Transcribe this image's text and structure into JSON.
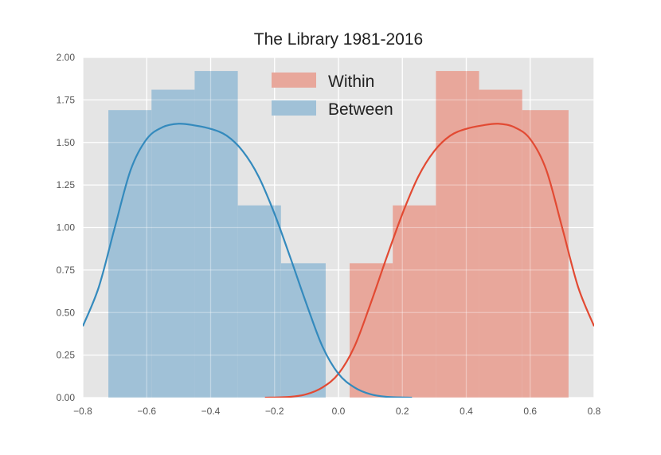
{
  "chart_data": {
    "type": "histogram",
    "title": "The Library 1981-2016",
    "xlabel": "",
    "ylabel": "",
    "xlim": [
      -0.8,
      0.8
    ],
    "ylim": [
      0,
      2.0
    ],
    "x_ticks": [
      -0.8,
      -0.6,
      -0.4,
      -0.2,
      0.0,
      0.2,
      0.4,
      0.6,
      0.8
    ],
    "x_tick_labels": [
      "−0.8",
      "−0.6",
      "−0.4",
      "−0.2",
      "0.0",
      "0.2",
      "0.4",
      "0.6",
      "0.8"
    ],
    "y_ticks": [
      0,
      0.25,
      0.5,
      0.75,
      1.0,
      1.25,
      1.5,
      1.75,
      2.0
    ],
    "y_tick_labels": [
      "0.00",
      "0.25",
      "0.50",
      "0.75",
      "1.00",
      "1.25",
      "1.50",
      "1.75",
      "2.00"
    ],
    "grid": true,
    "background": "#e5e5e5",
    "legend_position": "top-center",
    "series": [
      {
        "name": "Within",
        "color": "#e24a33",
        "fill_color": "#e8a79b",
        "bins": [
          {
            "x0": 0.035,
            "x1": 0.17,
            "y": 0.79
          },
          {
            "x0": 0.17,
            "x1": 0.305,
            "y": 1.13
          },
          {
            "x0": 0.305,
            "x1": 0.44,
            "y": 1.92
          },
          {
            "x0": 0.44,
            "x1": 0.575,
            "y": 1.81
          },
          {
            "x0": 0.575,
            "x1": 0.72,
            "y": 1.69
          }
        ],
        "kde": [
          [
            -0.23,
            0.0
          ],
          [
            -0.15,
            0.005
          ],
          [
            -0.1,
            0.02
          ],
          [
            -0.05,
            0.06
          ],
          [
            0.0,
            0.14
          ],
          [
            0.05,
            0.3
          ],
          [
            0.1,
            0.55
          ],
          [
            0.15,
            0.82
          ],
          [
            0.2,
            1.08
          ],
          [
            0.25,
            1.3
          ],
          [
            0.3,
            1.45
          ],
          [
            0.35,
            1.54
          ],
          [
            0.4,
            1.58
          ],
          [
            0.45,
            1.6
          ],
          [
            0.5,
            1.61
          ],
          [
            0.55,
            1.59
          ],
          [
            0.6,
            1.52
          ],
          [
            0.65,
            1.34
          ],
          [
            0.7,
            1.0
          ],
          [
            0.75,
            0.65
          ],
          [
            0.8,
            0.42
          ]
        ]
      },
      {
        "name": "Between",
        "color": "#348abd",
        "fill_color": "#a0c1d7",
        "bins": [
          {
            "x0": -0.72,
            "x1": -0.585,
            "y": 1.69
          },
          {
            "x0": -0.585,
            "x1": -0.45,
            "y": 1.81
          },
          {
            "x0": -0.45,
            "x1": -0.315,
            "y": 1.92
          },
          {
            "x0": -0.315,
            "x1": -0.18,
            "y": 1.13
          },
          {
            "x0": -0.18,
            "x1": -0.04,
            "y": 0.79
          }
        ],
        "kde": [
          [
            -0.8,
            0.42
          ],
          [
            -0.75,
            0.65
          ],
          [
            -0.7,
            1.0
          ],
          [
            -0.65,
            1.34
          ],
          [
            -0.6,
            1.52
          ],
          [
            -0.55,
            1.59
          ],
          [
            -0.5,
            1.61
          ],
          [
            -0.45,
            1.6
          ],
          [
            -0.4,
            1.58
          ],
          [
            -0.35,
            1.54
          ],
          [
            -0.3,
            1.45
          ],
          [
            -0.25,
            1.3
          ],
          [
            -0.2,
            1.08
          ],
          [
            -0.15,
            0.82
          ],
          [
            -0.1,
            0.55
          ],
          [
            -0.05,
            0.3
          ],
          [
            0.0,
            0.14
          ],
          [
            0.05,
            0.06
          ],
          [
            0.1,
            0.02
          ],
          [
            0.15,
            0.005
          ],
          [
            0.23,
            0.0
          ]
        ]
      }
    ]
  }
}
